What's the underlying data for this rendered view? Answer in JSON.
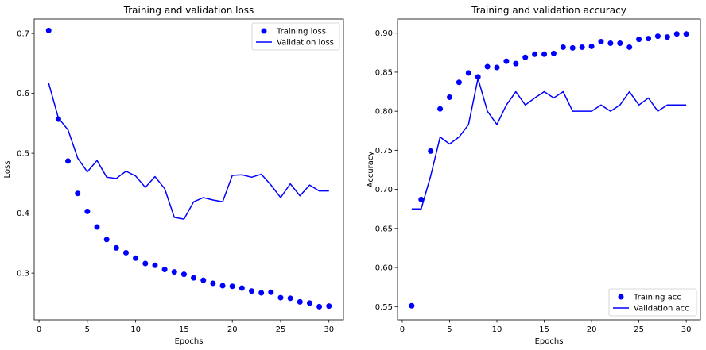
{
  "chart_data": [
    {
      "type": "line",
      "title": "Training and validation loss",
      "xlabel": "Epochs",
      "ylabel": "Loss",
      "xlim": [
        -0.5,
        31.5
      ],
      "ylim": [
        0.222,
        0.724
      ],
      "xticks": [
        0,
        5,
        10,
        15,
        20,
        25,
        30
      ],
      "xtick_labels": [
        "0",
        "5",
        "10",
        "15",
        "20",
        "25",
        "30"
      ],
      "yticks": [
        0.3,
        0.4,
        0.5,
        0.6,
        0.7
      ],
      "ytick_labels": [
        "0.3",
        "0.4",
        "0.5",
        "0.6",
        "0.7"
      ],
      "legend_position": "top-right",
      "grid": false,
      "x": [
        1,
        2,
        3,
        4,
        5,
        6,
        7,
        8,
        9,
        10,
        11,
        12,
        13,
        14,
        15,
        16,
        17,
        18,
        19,
        20,
        21,
        22,
        23,
        24,
        25,
        26,
        27,
        28,
        29,
        30
      ],
      "series": [
        {
          "name": "Training loss",
          "style": "markers",
          "color": "#0000ff",
          "values": [
            0.705,
            0.557,
            0.487,
            0.433,
            0.403,
            0.377,
            0.356,
            0.342,
            0.334,
            0.325,
            0.316,
            0.313,
            0.306,
            0.302,
            0.298,
            0.292,
            0.288,
            0.283,
            0.279,
            0.278,
            0.275,
            0.27,
            0.267,
            0.268,
            0.259,
            0.258,
            0.252,
            0.25,
            0.244,
            0.245
          ]
        },
        {
          "name": "Validation loss",
          "style": "line",
          "color": "#0000ff",
          "values": [
            0.617,
            0.559,
            0.539,
            0.492,
            0.469,
            0.488,
            0.46,
            0.458,
            0.47,
            0.462,
            0.443,
            0.461,
            0.441,
            0.393,
            0.39,
            0.419,
            0.426,
            0.422,
            0.419,
            0.463,
            0.464,
            0.46,
            0.465,
            0.447,
            0.426,
            0.449,
            0.429,
            0.447,
            0.437,
            0.437
          ]
        }
      ]
    },
    {
      "type": "line",
      "title": "Training and validation accuracy",
      "xlabel": "Epochs",
      "ylabel": "Accuracy",
      "xlim": [
        -0.5,
        31.5
      ],
      "ylim": [
        0.533,
        0.918
      ],
      "xticks": [
        0,
        5,
        10,
        15,
        20,
        25,
        30
      ],
      "xtick_labels": [
        "0",
        "5",
        "10",
        "15",
        "20",
        "25",
        "30"
      ],
      "yticks": [
        0.55,
        0.6,
        0.65,
        0.7,
        0.75,
        0.8,
        0.85,
        0.9
      ],
      "ytick_labels": [
        "0.55",
        "0.60",
        "0.65",
        "0.70",
        "0.75",
        "0.80",
        "0.85",
        "0.90"
      ],
      "legend_position": "bottom-right",
      "grid": false,
      "x": [
        1,
        2,
        3,
        4,
        5,
        6,
        7,
        8,
        9,
        10,
        11,
        12,
        13,
        14,
        15,
        16,
        17,
        18,
        19,
        20,
        21,
        22,
        23,
        24,
        25,
        26,
        27,
        28,
        29,
        30
      ],
      "series": [
        {
          "name": "Training acc",
          "style": "markers",
          "color": "#0000ff",
          "values": [
            0.551,
            0.687,
            0.749,
            0.803,
            0.818,
            0.837,
            0.849,
            0.844,
            0.857,
            0.856,
            0.864,
            0.861,
            0.869,
            0.873,
            0.873,
            0.874,
            0.882,
            0.881,
            0.882,
            0.883,
            0.889,
            0.887,
            0.887,
            0.882,
            0.892,
            0.893,
            0.896,
            0.895,
            0.899,
            0.899
          ]
        },
        {
          "name": "Validation acc",
          "style": "line",
          "color": "#0000ff",
          "values": [
            0.675,
            0.675,
            0.717,
            0.767,
            0.758,
            0.767,
            0.783,
            0.842,
            0.8,
            0.783,
            0.808,
            0.825,
            0.808,
            0.817,
            0.825,
            0.817,
            0.825,
            0.8,
            0.8,
            0.8,
            0.808,
            0.8,
            0.808,
            0.825,
            0.808,
            0.817,
            0.8,
            0.808,
            0.808,
            0.808
          ]
        }
      ]
    }
  ]
}
